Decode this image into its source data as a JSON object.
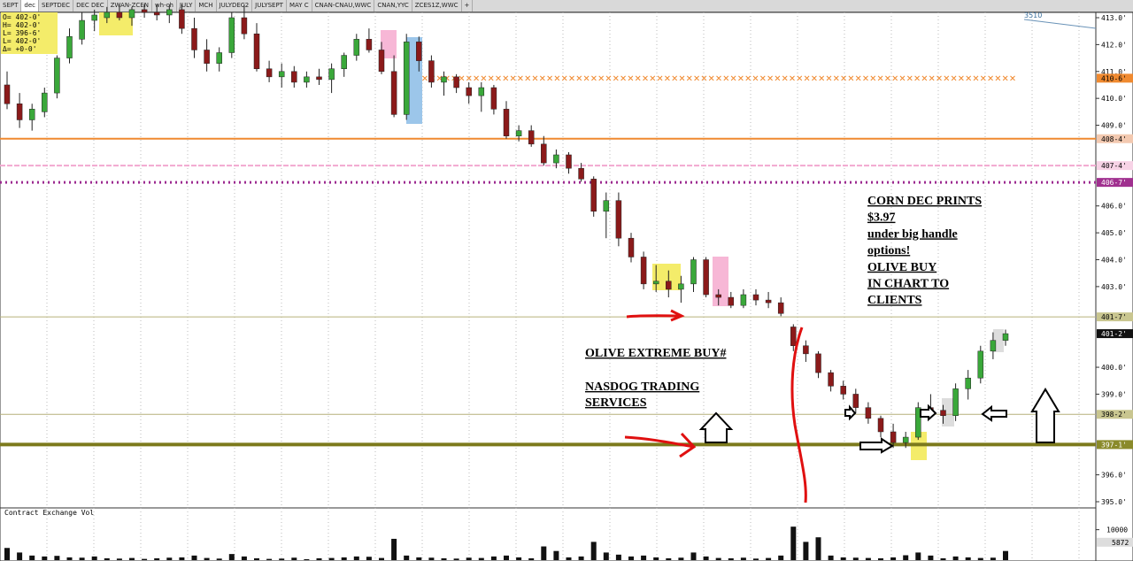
{
  "tabs": [
    "SEPT",
    "dec",
    "SEPTDEC",
    "DEC DEC",
    "ZWAN-ZCEN",
    "wh-ch",
    "JULY",
    "MCH",
    "JULYDEC2",
    "JULYSEPT",
    "MAY C",
    "CNAN-CNAU,WWC",
    "CNAN,YYC",
    "ZCES1Z,WWC",
    "+"
  ],
  "ohlc_box": [
    "O= 402-0'",
    "H= 402-0'",
    "L= 396-6'",
    "L= 402-0'",
    "Δ=  +0-0'"
  ],
  "corner_label": "3510",
  "price": {
    "ylim": [
      395,
      413
    ],
    "yticks": [
      {
        "value": 413,
        "label": "413.0'"
      },
      {
        "value": 412,
        "label": "412.0'"
      },
      {
        "value": 411,
        "label": "411.0'"
      },
      {
        "value": 410,
        "label": "410.0'"
      },
      {
        "value": 409,
        "label": "409.0'"
      },
      {
        "value": 406,
        "label": "406.0'"
      },
      {
        "value": 405,
        "label": "405.0'"
      },
      {
        "value": 404,
        "label": "404.0'"
      },
      {
        "value": 403,
        "label": "403.0'"
      },
      {
        "value": 400,
        "label": "400.0'"
      },
      {
        "value": 399,
        "label": "399.0'"
      },
      {
        "value": 396,
        "label": "396.0'"
      },
      {
        "value": 395,
        "label": "395.0'"
      }
    ],
    "markers": [
      {
        "value": 410.75,
        "label": "410-6'",
        "bg": "#f08a30",
        "fg": "#000"
      },
      {
        "value": 408.5,
        "label": "408-4'",
        "bg": "#f3c9b0",
        "fg": "#000"
      },
      {
        "value": 407.5,
        "label": "407-4'",
        "bg": "#f7d3e6",
        "fg": "#000"
      },
      {
        "value": 406.875,
        "label": "406-7'",
        "bg": "#a0308f",
        "fg": "#fff"
      },
      {
        "value": 401.875,
        "label": "401-7'",
        "bg": "#c9c690",
        "fg": "#000"
      },
      {
        "value": 401.25,
        "label": "401-2'",
        "bg": "#111",
        "fg": "#fff"
      },
      {
        "value": 398.25,
        "label": "398-2'",
        "bg": "#c9c690",
        "fg": "#000"
      },
      {
        "value": 397.125,
        "label": "397-1'",
        "bg": "#8a8a2a",
        "fg": "#fff"
      }
    ],
    "levels": [
      {
        "value": 408.5,
        "color": "#f08a30",
        "width": 2,
        "dash": ""
      },
      {
        "value": 407.5,
        "color": "#f2a8d0",
        "width": 2,
        "dash": "6 2"
      },
      {
        "value": 406.875,
        "color": "#9c2a90",
        "width": 3,
        "dash": "2 4"
      },
      {
        "value": 401.875,
        "color": "#b6b07a",
        "width": 1,
        "dash": ""
      },
      {
        "value": 398.25,
        "color": "#b6b07a",
        "width": 1,
        "dash": ""
      },
      {
        "value": 397.125,
        "color": "#7c7a1c",
        "width": 4,
        "dash": ""
      }
    ],
    "x_row": {
      "value": 410.75,
      "color": "#f08a30"
    },
    "up_color": "#3aa83a",
    "down_color": "#8b1a1a",
    "candles": [
      [
        410.5,
        411.0,
        409.6,
        409.8
      ],
      [
        409.8,
        410.2,
        408.9,
        409.2
      ],
      [
        409.2,
        409.8,
        408.8,
        409.6
      ],
      [
        409.5,
        410.4,
        409.3,
        410.2
      ],
      [
        410.2,
        411.6,
        410.0,
        411.5
      ],
      [
        411.5,
        412.6,
        411.3,
        412.3
      ],
      [
        412.2,
        413.2,
        412.0,
        412.9
      ],
      [
        412.9,
        413.3,
        412.5,
        413.1
      ],
      [
        413.0,
        413.4,
        412.8,
        413.2
      ],
      [
        413.2,
        413.5,
        412.9,
        413.0
      ],
      [
        413.0,
        413.4,
        412.7,
        413.3
      ],
      [
        413.3,
        413.5,
        413.0,
        413.2
      ],
      [
        413.2,
        413.5,
        412.9,
        413.1
      ],
      [
        413.1,
        413.5,
        412.8,
        413.3
      ],
      [
        413.3,
        413.5,
        412.4,
        412.6
      ],
      [
        412.6,
        413.0,
        411.5,
        411.8
      ],
      [
        411.8,
        412.2,
        411.0,
        411.3
      ],
      [
        411.3,
        411.9,
        411.0,
        411.7
      ],
      [
        411.7,
        413.2,
        411.5,
        413.0
      ],
      [
        413.0,
        413.5,
        412.2,
        412.4
      ],
      [
        412.4,
        412.8,
        411.0,
        411.1
      ],
      [
        411.1,
        411.4,
        410.6,
        410.8
      ],
      [
        410.8,
        411.3,
        410.4,
        411.0
      ],
      [
        411.0,
        411.2,
        410.4,
        410.6
      ],
      [
        410.6,
        411.0,
        410.4,
        410.8
      ],
      [
        410.8,
        411.1,
        410.5,
        410.7
      ],
      [
        410.7,
        411.3,
        410.2,
        411.1
      ],
      [
        411.1,
        411.7,
        410.8,
        411.6
      ],
      [
        411.6,
        412.4,
        411.4,
        412.2
      ],
      [
        412.2,
        412.6,
        411.7,
        411.8
      ],
      [
        411.8,
        412.1,
        410.9,
        411.0
      ],
      [
        411.0,
        411.6,
        409.3,
        409.4
      ],
      [
        409.4,
        412.4,
        409.2,
        412.1
      ],
      [
        412.1,
        412.3,
        411.0,
        411.4
      ],
      [
        411.4,
        411.6,
        410.4,
        410.6
      ],
      [
        410.6,
        411.0,
        410.1,
        410.8
      ],
      [
        410.8,
        410.9,
        410.2,
        410.4
      ],
      [
        410.4,
        410.6,
        409.8,
        410.1
      ],
      [
        410.1,
        410.6,
        409.5,
        410.4
      ],
      [
        410.4,
        410.5,
        409.4,
        409.6
      ],
      [
        409.6,
        409.9,
        408.5,
        408.6
      ],
      [
        408.6,
        409.0,
        408.4,
        408.8
      ],
      [
        408.8,
        409.0,
        408.2,
        408.3
      ],
      [
        408.3,
        408.6,
        407.5,
        407.6
      ],
      [
        407.6,
        408.1,
        407.4,
        407.9
      ],
      [
        407.9,
        408.0,
        407.2,
        407.4
      ],
      [
        407.4,
        407.6,
        406.9,
        407.0
      ],
      [
        407.0,
        407.1,
        405.6,
        405.8
      ],
      [
        405.8,
        406.5,
        404.8,
        406.2
      ],
      [
        406.2,
        406.5,
        404.5,
        404.8
      ],
      [
        404.8,
        405.0,
        403.9,
        404.1
      ],
      [
        404.1,
        404.3,
        402.9,
        403.1
      ],
      [
        403.1,
        403.8,
        402.8,
        403.2
      ],
      [
        403.2,
        403.6,
        402.6,
        402.9
      ],
      [
        402.9,
        403.4,
        402.4,
        403.1
      ],
      [
        403.1,
        404.1,
        402.8,
        404.0
      ],
      [
        404.0,
        404.1,
        402.6,
        402.7
      ],
      [
        402.7,
        402.9,
        402.3,
        402.6
      ],
      [
        402.6,
        402.8,
        402.2,
        402.3
      ],
      [
        402.3,
        402.9,
        402.2,
        402.7
      ],
      [
        402.7,
        402.9,
        402.3,
        402.5
      ],
      [
        402.5,
        402.8,
        402.2,
        402.4
      ],
      [
        402.4,
        402.6,
        401.9,
        402.0
      ],
      [
        401.5,
        401.6,
        400.6,
        400.8
      ],
      [
        400.8,
        401.0,
        400.2,
        400.5
      ],
      [
        400.5,
        400.6,
        399.6,
        399.8
      ],
      [
        399.8,
        399.9,
        399.1,
        399.3
      ],
      [
        399.3,
        399.5,
        398.8,
        399.0
      ],
      [
        399.0,
        399.2,
        398.3,
        398.5
      ],
      [
        398.5,
        398.7,
        397.9,
        398.1
      ],
      [
        398.1,
        398.2,
        397.4,
        397.6
      ],
      [
        397.6,
        397.9,
        397.0,
        397.2
      ],
      [
        397.2,
        397.6,
        397.0,
        397.4
      ],
      [
        397.4,
        398.7,
        397.3,
        398.5
      ],
      [
        398.5,
        399.0,
        398.1,
        398.4
      ],
      [
        398.4,
        398.6,
        397.9,
        398.2
      ],
      [
        398.2,
        399.4,
        398.0,
        399.2
      ],
      [
        399.2,
        399.9,
        398.8,
        399.6
      ],
      [
        399.6,
        400.8,
        399.4,
        400.6
      ],
      [
        400.6,
        401.3,
        400.3,
        401.0
      ],
      [
        401.0,
        401.4,
        400.8,
        401.25
      ]
    ]
  },
  "volume": {
    "title": "Contract Exchange Vol",
    "ylim": [
      0,
      16000
    ],
    "color": "#111",
    "yticks": [
      10000
    ],
    "last": 5872,
    "values": [
      4000,
      2500,
      1500,
      1200,
      1400,
      900,
      800,
      1200,
      600,
      500,
      700,
      400,
      600,
      800,
      900,
      1500,
      700,
      500,
      2000,
      1200,
      600,
      400,
      500,
      800,
      300,
      600,
      700,
      900,
      1200,
      1100,
      700,
      7000,
      1500,
      900,
      800,
      600,
      500,
      800,
      700,
      1200,
      1500,
      900,
      600,
      4500,
      3000,
      900,
      1200,
      6000,
      2500,
      1800,
      1200,
      1500,
      900,
      600,
      800,
      2500,
      1200,
      700,
      600,
      800,
      500,
      700,
      1500,
      11000,
      6000,
      7500,
      1500,
      900,
      800,
      700,
      600,
      900,
      1600,
      2500,
      1500,
      600,
      1200,
      900,
      700,
      800,
      3000
    ]
  },
  "annotations": {
    "right": [
      "CORN DEC PRINTS",
      "$3.97",
      "under big handle",
      "options!",
      "OLIVE BUY",
      "IN CHART TO",
      "CLIENTS"
    ],
    "left": [
      "OLIVE EXTREME BUY#",
      "NASDOG TRADING",
      "SERVICES"
    ]
  }
}
